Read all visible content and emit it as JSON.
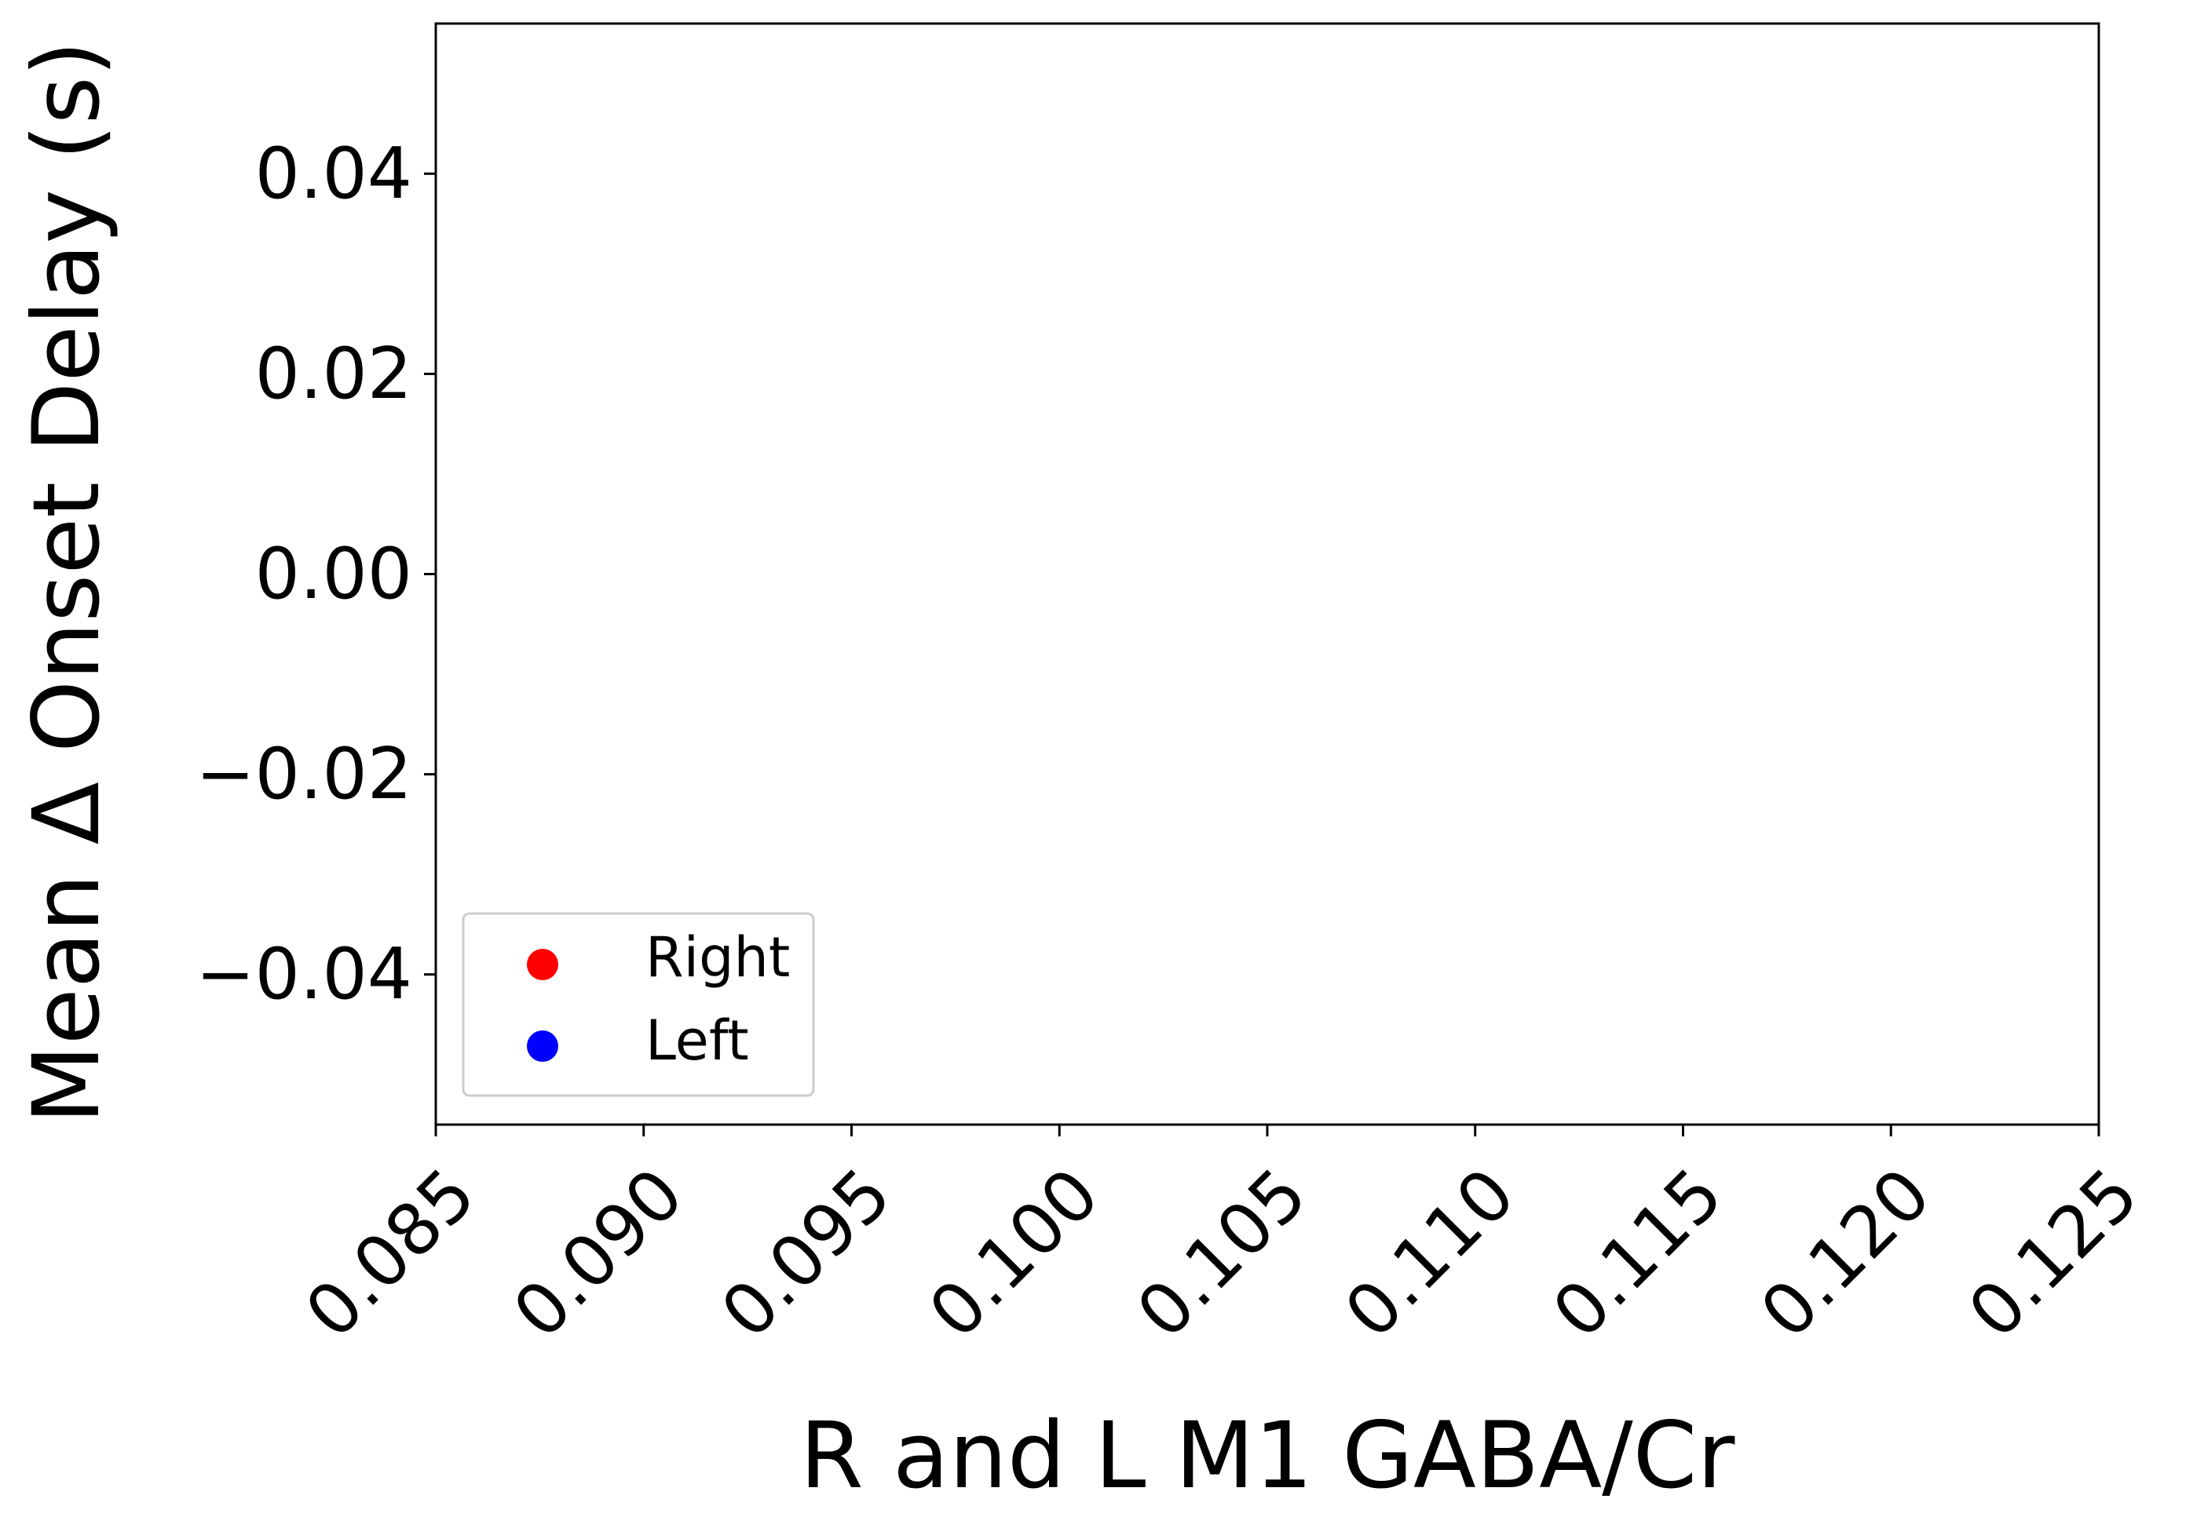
{
  "chart_data": {
    "type": "scatter",
    "title": "",
    "xlabel": "R and L M1 GABA/Cr",
    "ylabel": "Mean Δ Onset Delay (s)",
    "xlim": [
      0.085,
      0.125
    ],
    "ylim": [
      -0.055,
      0.055
    ],
    "x_ticks": [
      0.085,
      0.09,
      0.095,
      0.1,
      0.105,
      0.11,
      0.115,
      0.12,
      0.125
    ],
    "x_tick_labels": [
      "0.085",
      "0.090",
      "0.095",
      "0.100",
      "0.105",
      "0.110",
      "0.115",
      "0.120",
      "0.125"
    ],
    "y_ticks": [
      0.04,
      0.02,
      0.0,
      -0.02,
      -0.04
    ],
    "y_tick_labels": [
      "0.04",
      "0.02",
      "0.00",
      "−0.02",
      "−0.04"
    ],
    "grid": false,
    "legend_position": "lower-left",
    "series": [
      {
        "name": "Right",
        "color": "#ff0000",
        "marker": "circle",
        "points": []
      },
      {
        "name": "Left",
        "color": "#0000ff",
        "marker": "circle",
        "points": []
      }
    ]
  }
}
